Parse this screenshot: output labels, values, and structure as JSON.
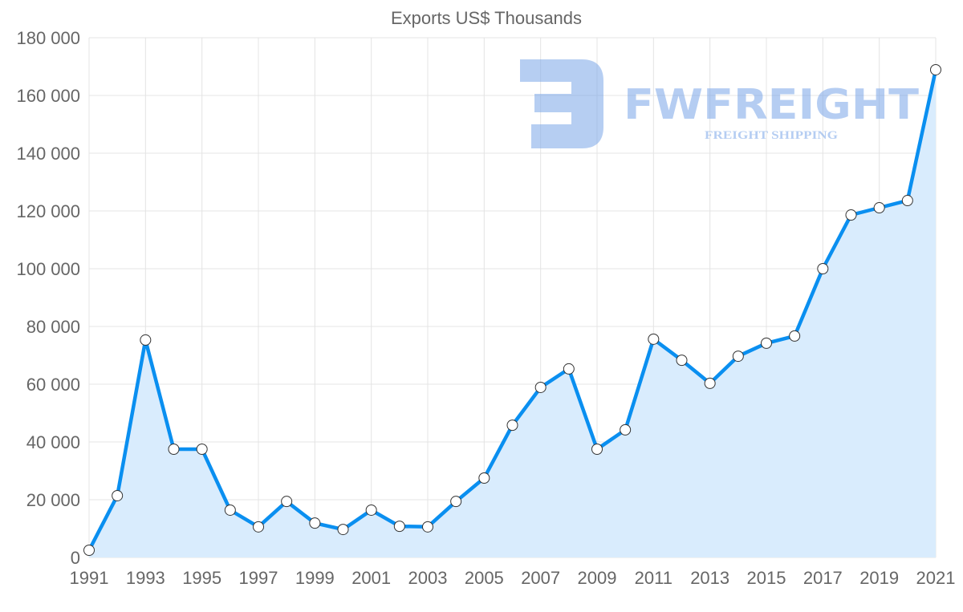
{
  "chart_data": {
    "type": "area",
    "title": "Exports US$ Thousands",
    "xlabel": "",
    "ylabel": "",
    "x": [
      1991,
      1992,
      1993,
      1994,
      1995,
      1996,
      1997,
      1998,
      1999,
      2000,
      2001,
      2002,
      2003,
      2004,
      2005,
      2006,
      2007,
      2008,
      2009,
      2010,
      2011,
      2012,
      2013,
      2014,
      2015,
      2016,
      2017,
      2018,
      2019,
      2020,
      2021
    ],
    "series": [
      {
        "name": "Exports US$ Thousands",
        "values": [
          2500,
          21400,
          75300,
          37500,
          37500,
          16400,
          10600,
          19400,
          11900,
          9700,
          16400,
          10800,
          10600,
          19400,
          27500,
          45800,
          58900,
          65300,
          37500,
          44200,
          75600,
          68300,
          60300,
          69700,
          74200,
          76700,
          100000,
          118600,
          121100,
          123600,
          168900
        ]
      }
    ],
    "ylim": [
      0,
      180000
    ],
    "xlim": [
      1991,
      2021
    ],
    "y_ticks": [
      "0",
      "20 000",
      "40 000",
      "60 000",
      "80 000",
      "100 000",
      "120 000",
      "140 000",
      "160 000",
      "180 000"
    ],
    "x_ticks": [
      "1991",
      "1993",
      "1995",
      "1997",
      "1999",
      "2001",
      "2003",
      "2005",
      "2007",
      "2009",
      "2011",
      "2013",
      "2015",
      "2017",
      "2019",
      "2021"
    ],
    "grid": true,
    "line_color": "#0a8ff0",
    "fill_color": "#d9ecfd"
  },
  "watermark": {
    "brand": "FWFREIGHT",
    "tagline": "FREIGHT SHIPPING"
  }
}
